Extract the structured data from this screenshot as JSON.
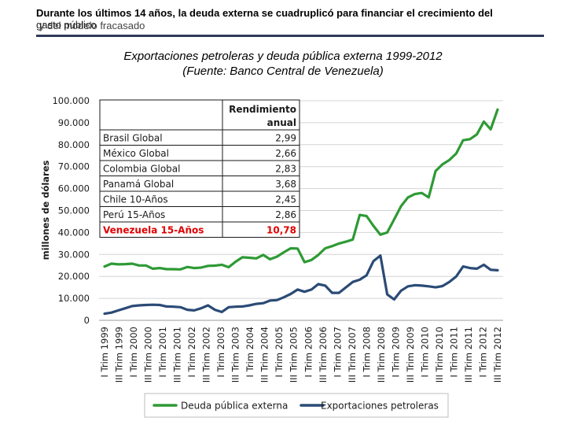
{
  "header": {
    "title": "Durante los últimos 14 años, la deuda externa se cuadruplicó para financiar el crecimiento del",
    "line2_a": "gasto público",
    "line2_b": "y del modelo fracasado"
  },
  "chart_data": {
    "type": "line",
    "title": "Exportaciones petroleras y deuda pública externa 1999-2012",
    "subtitle": "(Fuente: Banco Central de Venezuela)",
    "xlabel": "",
    "ylabel": "millones de dólares",
    "ylim": [
      0,
      100000
    ],
    "yticks": [
      0,
      10000,
      20000,
      30000,
      40000,
      50000,
      60000,
      70000,
      80000,
      90000,
      100000
    ],
    "ytick_labels": [
      "0",
      "10.000",
      "20.000",
      "30.000",
      "40.000",
      "50.000",
      "60.000",
      "70.000",
      "80.000",
      "90.000",
      "100.000"
    ],
    "grid": true,
    "x_tick_labels": [
      "I Trim 1999",
      "III Trim 1999",
      "I Trim 2000",
      "III Trim 2000",
      "I Trim 2001",
      "III Trim 2001",
      "I Trim 2002",
      "III Trim 2002",
      "I Trim 2003",
      "III Trim 2003",
      "I Trim 2004",
      "III Trim 2004",
      "I Trim 2005",
      "III Trim 2005",
      "I Trim 2006",
      "III Trim 2006",
      "I Trim 2007",
      "III Trim 2007",
      "I Trim 2008",
      "III Trim 2008",
      "I Trim 2009",
      "III Trim 2009",
      "I Trim 2010",
      "III Trim 2010",
      "I Trim 2011",
      "III Trim 2011",
      "I Trim 2012",
      "III Trim 2012"
    ],
    "legend_position": "bottom",
    "series": [
      {
        "name": "Deuda pública externa",
        "color": "#2e9a35",
        "values": [
          24500,
          25800,
          25500,
          25600,
          25800,
          25000,
          25000,
          23500,
          23800,
          23300,
          23300,
          23200,
          24300,
          23800,
          24000,
          24800,
          24900,
          25300,
          24200,
          26700,
          28700,
          28500,
          28200,
          29800,
          27800,
          29000,
          31000,
          32800,
          32700,
          26500,
          27500,
          29800,
          32800,
          33800,
          35000,
          35800,
          36800,
          48000,
          47500,
          43000,
          39000,
          40000,
          46000,
          52000,
          56000,
          57500,
          58000,
          56000,
          68000,
          71000,
          73000,
          76000,
          82000,
          82500,
          84700,
          90500,
          87000,
          96000
        ]
      },
      {
        "name": "Exportaciones petroleras",
        "color": "#2b4b76",
        "values": [
          3000,
          3500,
          4500,
          5500,
          6500,
          6800,
          7000,
          7100,
          7000,
          6300,
          6200,
          6000,
          4800,
          4500,
          5500,
          6800,
          4800,
          3800,
          6000,
          6200,
          6300,
          6800,
          7500,
          7800,
          9000,
          9200,
          10500,
          12000,
          14000,
          13000,
          14000,
          16500,
          15800,
          12500,
          12500,
          15000,
          17500,
          18500,
          20500,
          27000,
          29500,
          11800,
          9500,
          13500,
          15500,
          16000,
          15800,
          15500,
          15000,
          15600,
          17500,
          20000,
          24500,
          23800,
          23500,
          25300,
          23000,
          22800
        ]
      }
    ],
    "table": {
      "header": "Rendimiento anual",
      "header_line1": "Rendimiento",
      "header_line2": "anual",
      "rows": [
        {
          "name": "Brasil Global",
          "value": "2,99",
          "highlight": false
        },
        {
          "name": "México Global",
          "value": "2,66",
          "highlight": false
        },
        {
          "name": "Colombia Global",
          "value": "2,83",
          "highlight": false
        },
        {
          "name": "Panamá Global",
          "value": "3,68",
          "highlight": false
        },
        {
          "name": "Chile 10-Años",
          "value": "2,45",
          "highlight": false
        },
        {
          "name": "Perú 15-Años",
          "value": "2,86",
          "highlight": false
        },
        {
          "name": "Venezuela 15-Años",
          "value": "10,78",
          "highlight": true
        }
      ]
    }
  }
}
